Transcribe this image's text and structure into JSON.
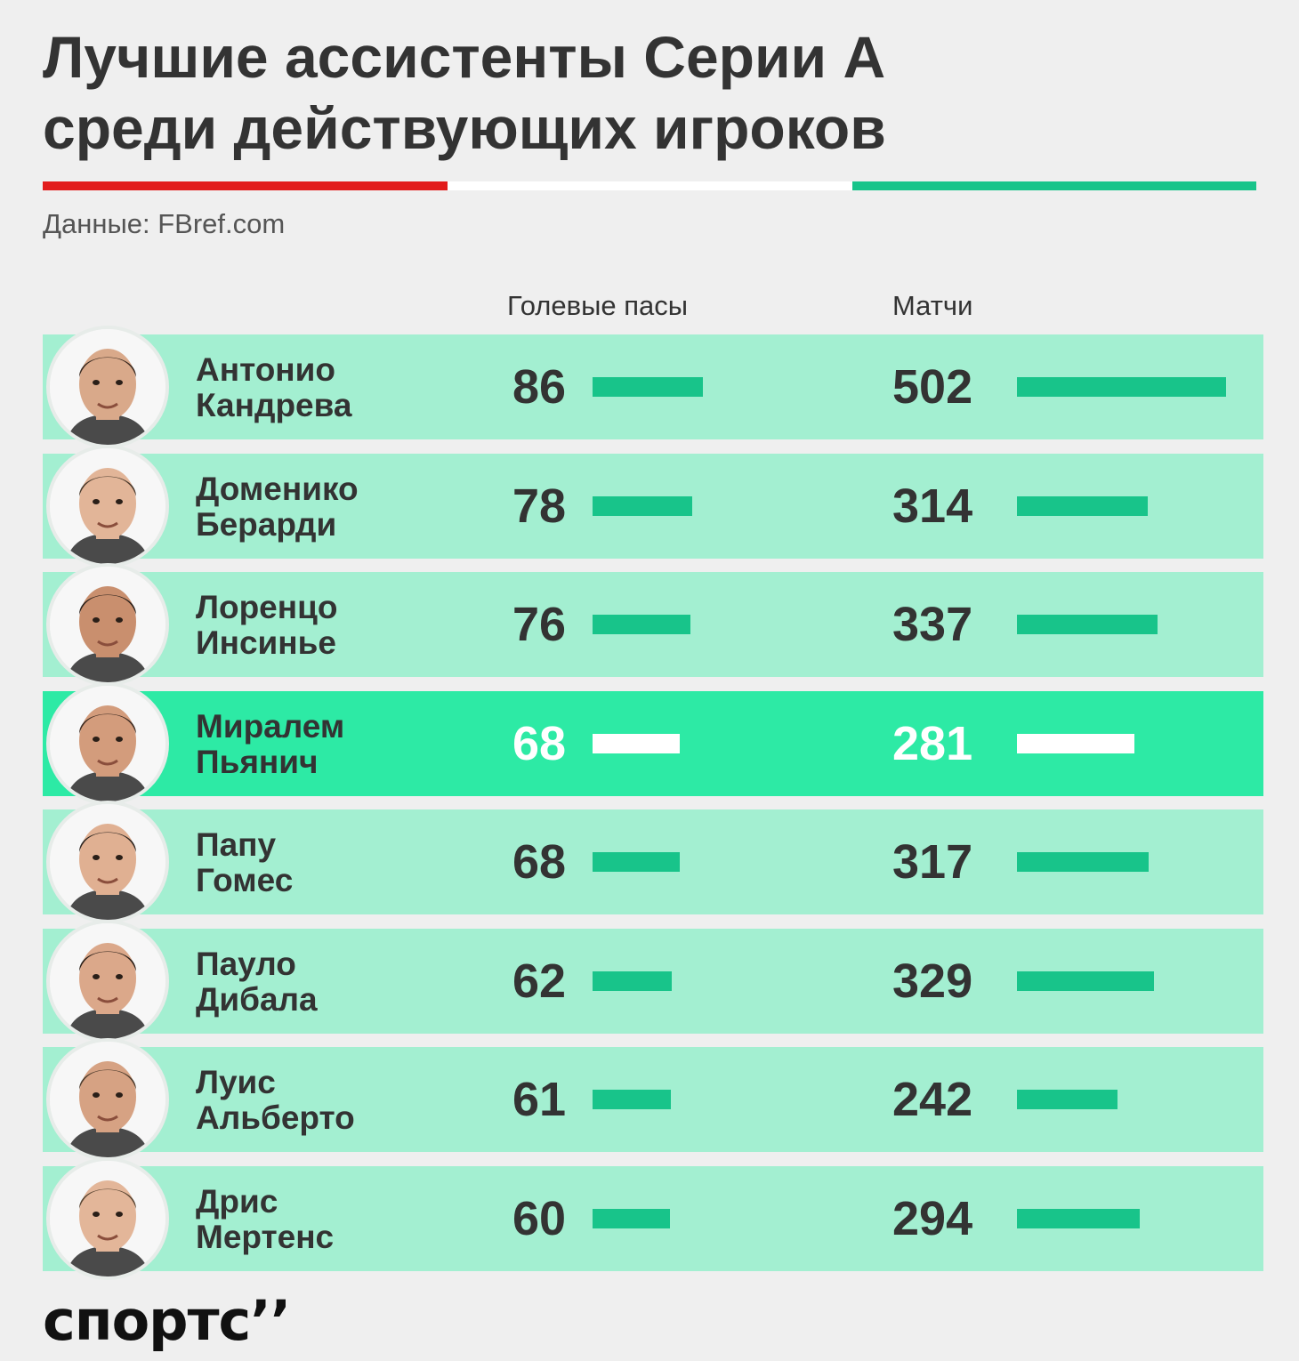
{
  "title_lines": [
    "Лучшие ассистенты Серии А",
    "среди действующих игроков"
  ],
  "source": "Данные: FBref.com",
  "headers": {
    "assists": "Голевые пасы",
    "matches": "Матчи"
  },
  "logo": "спортс’’",
  "colors": {
    "row": "#a3efd1",
    "highlight_row": "#2deaa5",
    "bar": "#18c48a",
    "flag_red": "#e21b1b",
    "flag_white": "#ffffff",
    "flag_green": "#18c48a"
  },
  "chart_data": {
    "type": "bar",
    "categories": [
      "Антонио Кандрева",
      "Доменико Берарди",
      "Лоренцо Инсинье",
      "Миралем Пьянич",
      "Папу Гомес",
      "Пауло Дибала",
      "Луис Альберто",
      "Дрис Мертенс"
    ],
    "series": [
      {
        "name": "Голевые пасы",
        "values": [
          86,
          78,
          76,
          68,
          68,
          62,
          61,
          60
        ]
      },
      {
        "name": "Матчи",
        "values": [
          502,
          314,
          337,
          281,
          317,
          329,
          242,
          294
        ]
      }
    ],
    "highlighted": "Миралем Пьянич"
  },
  "players": [
    {
      "first": "Антонио",
      "last": "Кандрева",
      "assists": "86",
      "matches": "502"
    },
    {
      "first": "Доменико",
      "last": "Берарди",
      "assists": "78",
      "matches": "314"
    },
    {
      "first": "Лоренцо",
      "last": "Инсинье",
      "assists": "76",
      "matches": "337"
    },
    {
      "first": "Миралем",
      "last": "Пьянич",
      "assists": "68",
      "matches": "281"
    },
    {
      "first": "Папу",
      "last": "Гомес",
      "assists": "68",
      "matches": "317"
    },
    {
      "first": "Пауло",
      "last": "Дибала",
      "assists": "62",
      "matches": "329"
    },
    {
      "first": "Луис",
      "last": "Альберто",
      "assists": "61",
      "matches": "242"
    },
    {
      "first": "Дрис",
      "last": "Мертенс",
      "assists": "60",
      "matches": "294"
    }
  ]
}
